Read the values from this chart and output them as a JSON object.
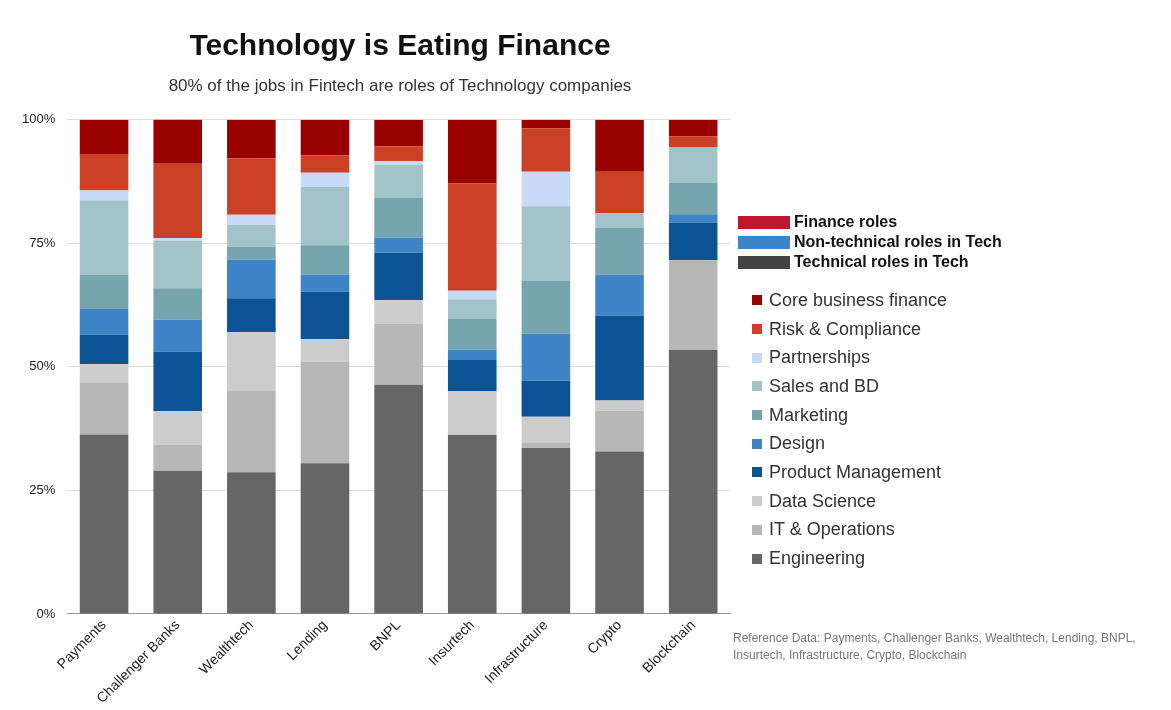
{
  "chart_data": {
    "type": "bar",
    "stacked": true,
    "title": "Technology is Eating Finance",
    "subtitle": "80% of the jobs in Fintech are roles of Technology companies",
    "categories": [
      "Payments",
      "Challenger Banks",
      "Wealthtech",
      "Lending",
      "BNPL",
      "Insurtech",
      "Infrastructure",
      "Crypto",
      "Blockchain"
    ],
    "series": [
      {
        "name": "Engineering",
        "color": "#666666",
        "values": [
          36.3,
          29,
          28.7,
          30.5,
          46.4,
          36.2,
          33.6,
          32.9,
          53.4
        ]
      },
      {
        "name": "IT & Operations",
        "color": "#b7b7b7",
        "values": [
          10.6,
          5.3,
          16.4,
          20.6,
          12.4,
          0,
          1,
          8.2,
          18.2
        ]
      },
      {
        "name": "Data Science",
        "color": "#cccccc",
        "values": [
          3.7,
          6.7,
          11.9,
          4.5,
          4.7,
          8.9,
          5.3,
          2.1,
          0
        ]
      },
      {
        "name": "Product Management",
        "color": "#0b5394",
        "values": [
          5.9,
          12.1,
          6.9,
          9.6,
          9.6,
          6.3,
          7.3,
          17.2,
          7.6
        ]
      },
      {
        "name": "Design",
        "color": "#3d85c6",
        "values": [
          5.2,
          6.5,
          7.8,
          3.5,
          3.1,
          2.1,
          9.5,
          8.3,
          1.7
        ]
      },
      {
        "name": "Marketing",
        "color": "#76a5af",
        "values": [
          7,
          6.3,
          2.6,
          5.9,
          8.1,
          6.2,
          10.8,
          9.4,
          6.3
        ]
      },
      {
        "name": "Sales and BD",
        "color": "#a2c4c9",
        "values": [
          15,
          9.7,
          4.4,
          11.8,
          6.6,
          4,
          15,
          3,
          7.2
        ]
      },
      {
        "name": "Partnerships",
        "color": "#c9daf8",
        "values": [
          2,
          0.5,
          2.1,
          2.9,
          0.7,
          1.7,
          7,
          0,
          0
        ]
      },
      {
        "name": "Risk & Compliance",
        "color": "#cc4125",
        "values": [
          7.4,
          15,
          11.4,
          3.5,
          3,
          21.7,
          8.8,
          8.4,
          2.2
        ]
      },
      {
        "name": "Core business finance",
        "color": "#990000",
        "values": [
          6.9,
          9,
          7.8,
          7.2,
          5.4,
          12.9,
          1.7,
          10.5,
          3.4
        ]
      }
    ],
    "ylim": [
      0,
      100
    ],
    "yticks": [
      {
        "value": 0,
        "label": "0%"
      },
      {
        "value": 25,
        "label": "25%"
      },
      {
        "value": 50,
        "label": "50%"
      },
      {
        "value": 75,
        "label": "75%"
      },
      {
        "value": 100,
        "label": "100%"
      }
    ],
    "grid": "y",
    "legend": "right",
    "annotations": [
      "Finance roles",
      "Non-technical roles in Tech",
      "Technical roles in Tech",
      "Reference Data: Payments, Challenger Banks, Wealthtech, Lending, BNPL, Insurtech, Infrastructure, Crypto, Blockchain"
    ]
  }
}
